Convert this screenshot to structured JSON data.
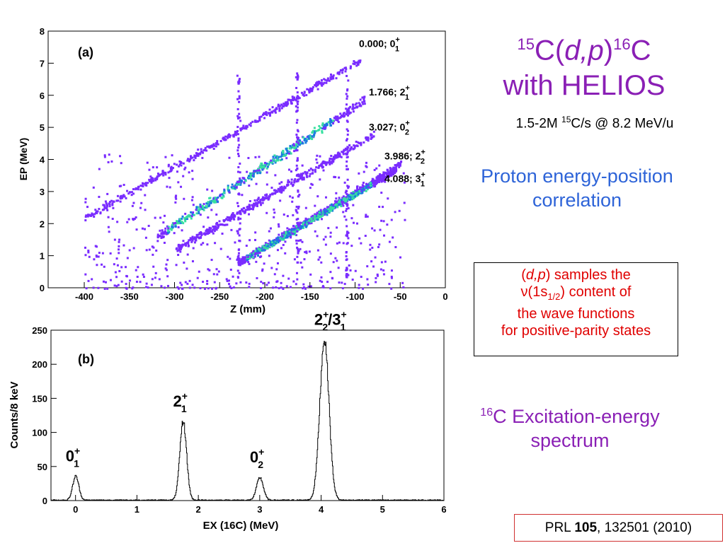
{
  "slide": {
    "title_line1": {
      "sup1": "15",
      "a": "C(",
      "em": "d,p",
      "b": ")",
      "sup2": "16",
      "c": "C"
    },
    "title_line2": "with HELIOS",
    "subtitle": {
      "a": "1.5-2M ",
      "sup": "15",
      "b": "C/s @ 8.2 MeV/u"
    },
    "proton_caption": "Proton energy-position correlation",
    "box_text": {
      "open": "(",
      "em": "d,p",
      "close": ") samples the",
      "nu": "ν(1s",
      "sub": "1/2",
      "after": ") content of",
      "line3": "the wave functions",
      "line4": "for positive-parity states"
    },
    "excitation_caption": {
      "sup": "16",
      "text": "C Excitation-energy spectrum"
    },
    "reference": {
      "a": "PRL ",
      "bold": "105",
      "b": ", 132501 (2010)"
    }
  },
  "colors": {
    "title_purple": "#8a1fb5",
    "proton_blue": "#2e64d8",
    "box_red": "#e00000",
    "scatter_violet": "#7a2cff",
    "scatter_dense_blue": "#1a7ae0",
    "scatter_core_green": "#38e0a0",
    "ref_border": "#d03030"
  },
  "chart_data": [
    {
      "type": "scatter",
      "panel_label": "(a)",
      "xlabel": "Z (mm)",
      "ylabel": "EP (MeV)",
      "xlim": [
        -440,
        0
      ],
      "ylim": [
        0,
        8
      ],
      "xticks": [
        -400,
        -350,
        -300,
        -250,
        -200,
        -150,
        -100,
        -50,
        0
      ],
      "yticks": [
        0,
        1,
        2,
        3,
        4,
        5,
        6,
        7,
        8
      ],
      "series": [
        {
          "name": "0.000; 0+1",
          "z_range": [
            -400,
            -95
          ],
          "e_range": [
            2.2,
            7.1
          ],
          "state": "0.000",
          "spin": "0",
          "sub": "1",
          "label_y": 7.5
        },
        {
          "name": "1.766; 2+1",
          "z_range": [
            -320,
            -90
          ],
          "e_range": [
            1.6,
            5.9
          ],
          "state": "1.766",
          "spin": "2",
          "sub": "1",
          "label_y": 6.0
        },
        {
          "name": "3.027; 0+2",
          "z_range": [
            -300,
            -80
          ],
          "e_range": [
            1.2,
            4.8
          ],
          "state": "3.027",
          "spin": "0",
          "sub": "2",
          "label_y": 4.9
        },
        {
          "name": "3.986; 2+2",
          "z_range": [
            -230,
            -50
          ],
          "e_range": [
            0.8,
            3.9
          ],
          "state": "3.986",
          "spin": "2",
          "sub": "2",
          "label_y": 4.0
        },
        {
          "name": "4.088; 3+1",
          "z_range": [
            -230,
            -55
          ],
          "e_range": [
            0.8,
            3.7
          ],
          "state": "4.088",
          "spin": "3",
          "sub": "1",
          "label_y": 3.3
        }
      ],
      "vertical_bands_z": [
        -230,
        -165,
        -110
      ]
    },
    {
      "type": "line",
      "panel_label": "(b)",
      "xlabel": "EX (16C) (MeV)",
      "ylabel": "Counts/8 keV",
      "xlim": [
        -0.4,
        6
      ],
      "ylim": [
        0,
        250
      ],
      "xticks": [
        0,
        1,
        2,
        3,
        4,
        5,
        6
      ],
      "yticks": [
        0,
        50,
        100,
        150,
        200,
        250
      ],
      "peaks": [
        {
          "x": 0.0,
          "height": 35,
          "width": 0.05,
          "label_spin": "0",
          "label_sub": "1",
          "label2_spin": "",
          "label2_sub": ""
        },
        {
          "x": 1.75,
          "height": 115,
          "width": 0.055,
          "label_spin": "2",
          "label_sub": "1",
          "label2_spin": "",
          "label2_sub": ""
        },
        {
          "x": 3.0,
          "height": 33,
          "width": 0.055,
          "label_spin": "0",
          "label_sub": "2",
          "label2_spin": "",
          "label2_sub": ""
        },
        {
          "x": 4.05,
          "height": 235,
          "width": 0.075,
          "label_spin": "2",
          "label_sub": "2",
          "label2_spin": "3",
          "label2_sub": "1"
        }
      ]
    }
  ]
}
